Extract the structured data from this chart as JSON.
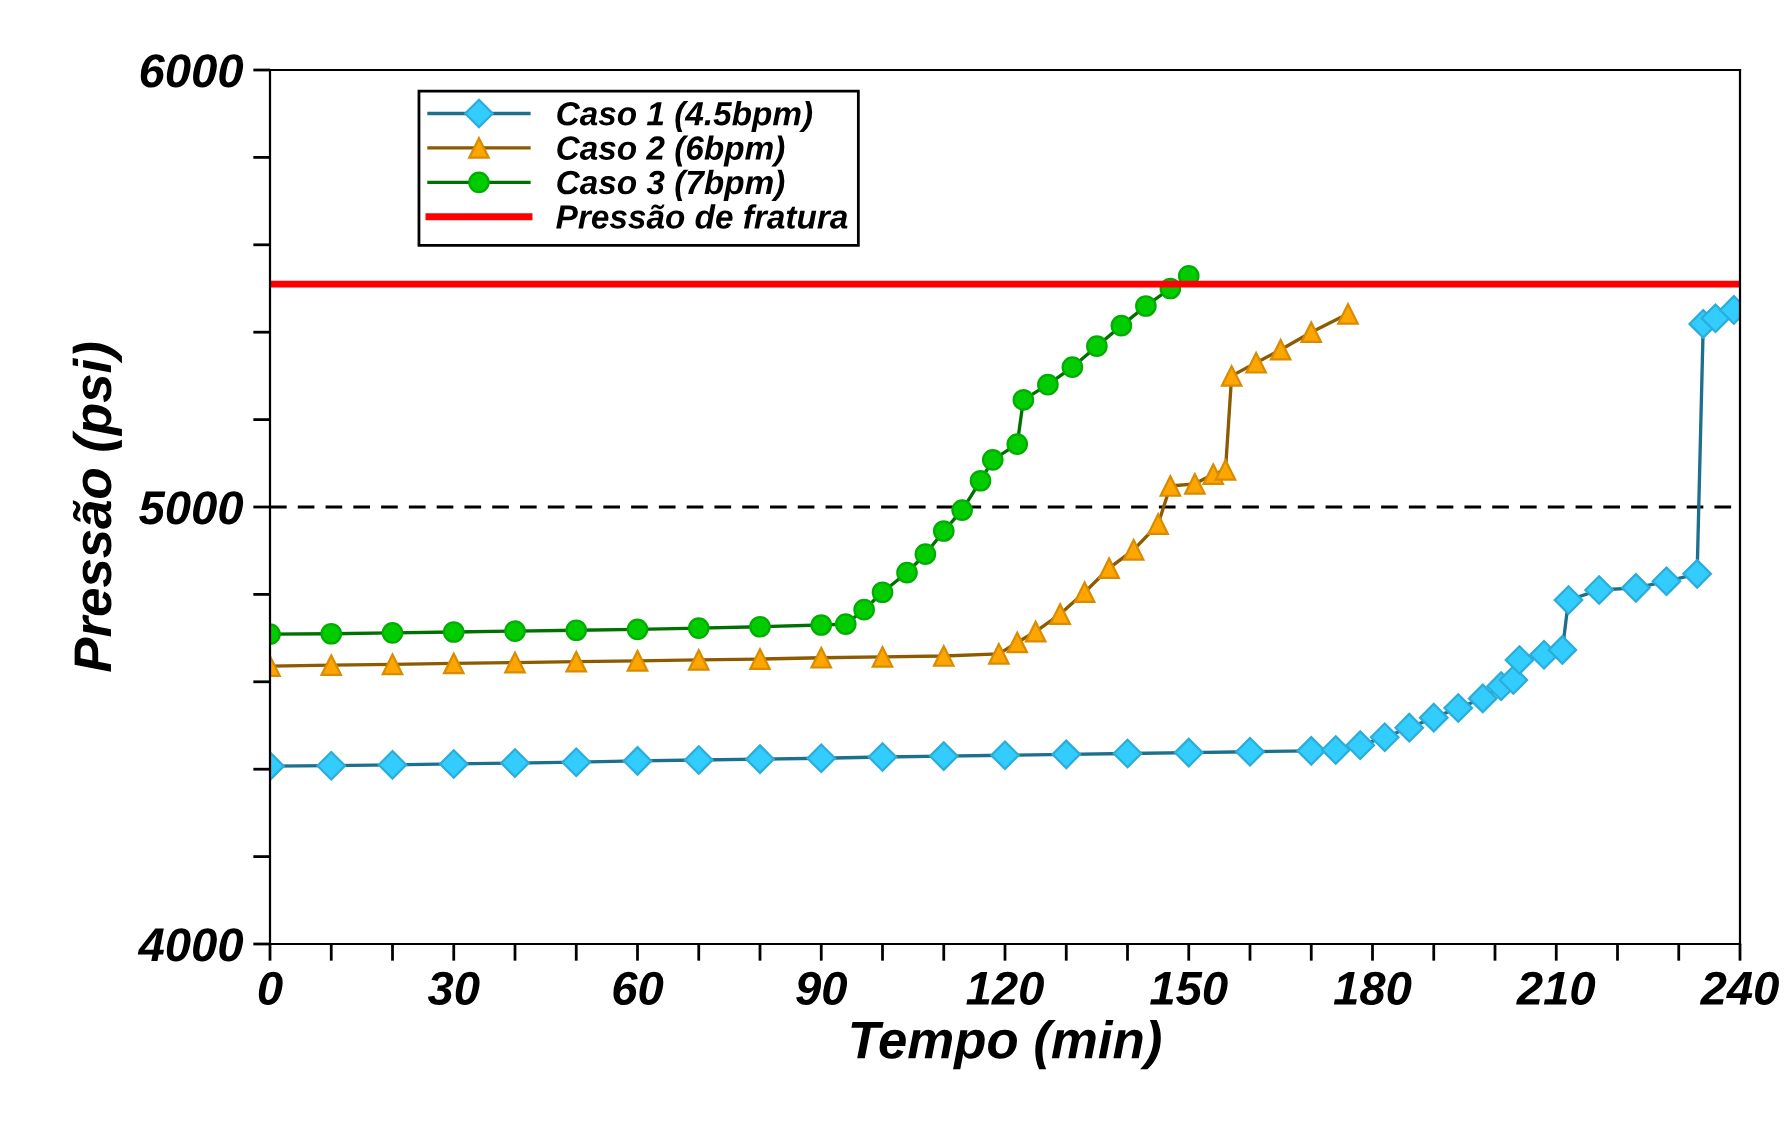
{
  "chart_data": {
    "type": "line",
    "xlabel": "Tempo (min)",
    "ylabel": "Pressão (psi)",
    "xlim": [
      0,
      240
    ],
    "ylim": [
      4000,
      6000
    ],
    "xticks": [
      0,
      {
        "value": 10,
        "label": null
      },
      {
        "value": 20,
        "label": null
      },
      30,
      {
        "value": 40,
        "label": null
      },
      {
        "value": 50,
        "label": null
      },
      60,
      {
        "value": 70,
        "label": null
      },
      {
        "value": 80,
        "label": null
      },
      90,
      {
        "value": 100,
        "label": null
      },
      {
        "value": 110,
        "label": null
      },
      120,
      {
        "value": 130,
        "label": null
      },
      {
        "value": 140,
        "label": null
      },
      150,
      {
        "value": 160,
        "label": null
      },
      {
        "value": 170,
        "label": null
      },
      180,
      {
        "value": 190,
        "label": null
      },
      {
        "value": 200,
        "label": null
      },
      210,
      {
        "value": 220,
        "label": null
      },
      {
        "value": 230,
        "label": null
      },
      240
    ],
    "yticks": [
      4000,
      {
        "value": 4200,
        "label": null
      },
      {
        "value": 4400,
        "label": null
      },
      {
        "value": 4600,
        "label": null
      },
      {
        "value": 4800,
        "label": null
      },
      5000,
      {
        "value": 5200,
        "label": null
      },
      {
        "value": 5400,
        "label": null
      },
      {
        "value": 5600,
        "label": null
      },
      {
        "value": 5800,
        "label": null
      },
      6000
    ],
    "ref_lines": [
      {
        "axis": "y",
        "value": 5000,
        "color": "#000000",
        "line_style": "dashed"
      }
    ],
    "legend": "top left",
    "series": [
      {
        "name": "Caso 1 (4.5bpm)",
        "color": "#33ccff",
        "marker": "diamond",
        "x": [
          0,
          10,
          20,
          30,
          40,
          50,
          60,
          70,
          80,
          90,
          100,
          110,
          120,
          130,
          140,
          150,
          160,
          170,
          174,
          178,
          182,
          186,
          190,
          194,
          198,
          201,
          203,
          204,
          208,
          211,
          212,
          217,
          223,
          228,
          233,
          234,
          236,
          239
        ],
        "values": [
          4407,
          4408,
          4410,
          4412,
          4414,
          4416,
          4419,
          4421,
          4423,
          4425,
          4428,
          4430,
          4432,
          4434,
          4436,
          4438,
          4440,
          4442,
          4444,
          4455,
          4473,
          4495,
          4518,
          4540,
          4562,
          4590,
          4604,
          4650,
          4662,
          4673,
          4787,
          4810,
          4815,
          4830,
          4847,
          5419,
          5432,
          5451
        ]
      },
      {
        "name": "Caso 2 (6bpm)",
        "color": "#ffa500",
        "marker": "triangle",
        "x": [
          0,
          10,
          20,
          30,
          40,
          50,
          60,
          70,
          80,
          90,
          100,
          110,
          119,
          122,
          125,
          129,
          133,
          137,
          141,
          145,
          147,
          151,
          154,
          156,
          157,
          161,
          165,
          170,
          176
        ],
        "values": [
          4636,
          4638,
          4640,
          4642,
          4644,
          4646,
          4648,
          4650,
          4652,
          4655,
          4657,
          4659,
          4664,
          4690,
          4715,
          4755,
          4805,
          4860,
          4902,
          4961,
          5048,
          5053,
          5075,
          5085,
          5300,
          5330,
          5360,
          5400,
          5442
        ]
      },
      {
        "name": "Caso 3 (7bpm)",
        "color": "#00cc00",
        "marker": "circle",
        "x": [
          0,
          10,
          20,
          30,
          40,
          50,
          60,
          70,
          80,
          90,
          94,
          97,
          100,
          104,
          107,
          110,
          113,
          116,
          118,
          122,
          123,
          127,
          131,
          135,
          139,
          143,
          147,
          150
        ],
        "values": [
          4709,
          4710,
          4712,
          4714,
          4716,
          4718,
          4720,
          4723,
          4726,
          4730,
          4732,
          4765,
          4805,
          4850,
          4892,
          4945,
          4993,
          5060,
          5108,
          5144,
          5245,
          5280,
          5320,
          5368,
          5415,
          5460,
          5500,
          5529
        ]
      },
      {
        "name": "Pressão de fratura",
        "color": "#ff0000",
        "marker": "none",
        "x": [
          0,
          240
        ],
        "values": [
          5510,
          5510
        ]
      }
    ]
  }
}
